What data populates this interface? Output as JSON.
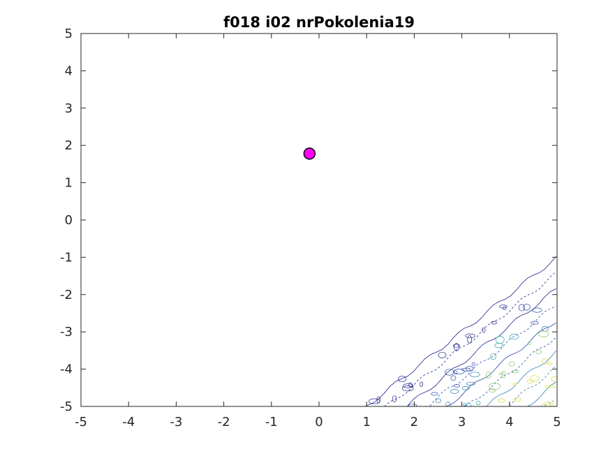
{
  "chart_data": {
    "type": "contour",
    "title": "f018 i02 nrPokolenia19",
    "xlabel": "",
    "ylabel": "",
    "xlim": [
      -5,
      5
    ],
    "ylim": [
      -5,
      5
    ],
    "x_ticks": [
      -5,
      -4,
      -3,
      -2,
      -1,
      0,
      1,
      2,
      3,
      4,
      5
    ],
    "y_ticks": [
      -5,
      -4,
      -3,
      -2,
      -1,
      0,
      1,
      2,
      3,
      4,
      5
    ],
    "grid": false,
    "box": true,
    "contour_region": "lower-right corner, bounded roughly by the line y = x - 6",
    "contour_colormap": [
      "#1f1f8c",
      "#2a4ba8",
      "#2f7fb0",
      "#2aa7a0",
      "#7cc36a",
      "#d6d43a"
    ],
    "points": [
      {
        "x": -0.2,
        "y": 1.78,
        "marker": "circle",
        "fill": "#ff00ff",
        "edge": "#000000"
      }
    ]
  }
}
